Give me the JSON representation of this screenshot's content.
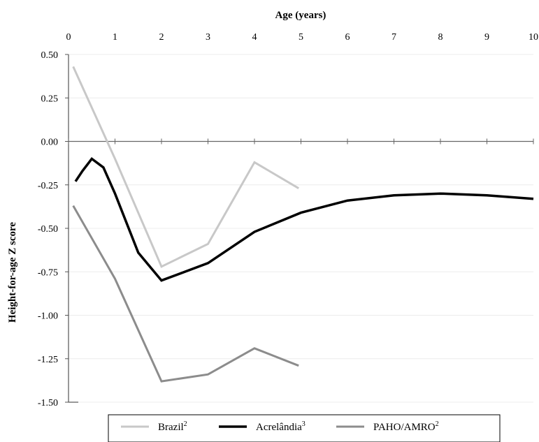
{
  "chart_data": {
    "type": "line",
    "title": "",
    "xlabel": "Age (years)",
    "ylabel": "Height-for-age Z score",
    "x_axis_position": "top",
    "xlim": [
      0,
      10
    ],
    "ylim": [
      -1.5,
      0.5
    ],
    "x_ticks": [
      0,
      1,
      2,
      3,
      4,
      5,
      6,
      7,
      8,
      9,
      10
    ],
    "y_ticks": [
      0.5,
      0.25,
      0.0,
      -0.25,
      -0.5,
      -0.75,
      -1.0,
      -1.25,
      -1.5
    ],
    "y_tick_labels": [
      "0.50",
      "0.25",
      "0.00",
      "-0.25",
      "-0.50",
      "-0.75",
      "-1.00",
      "-1.25",
      "-1.50"
    ],
    "grid": true,
    "legend_position": "bottom",
    "series": [
      {
        "name": "Brazil",
        "name_superscript": "2",
        "color": "#c8c8c8",
        "width": 3,
        "x": [
          0.1,
          1.0,
          2.0,
          3.0,
          4.0,
          4.95
        ],
        "y": [
          0.43,
          -0.1,
          -0.72,
          -0.59,
          -0.12,
          -0.27
        ]
      },
      {
        "name": "Acrelândia",
        "name_superscript": "3",
        "color": "#000000",
        "width": 3.5,
        "x": [
          0.15,
          0.3,
          0.5,
          0.75,
          1.0,
          1.5,
          2.0,
          3.0,
          4.0,
          5.0,
          6.0,
          7.0,
          8.0,
          9.0,
          10.0
        ],
        "y": [
          -0.23,
          -0.17,
          -0.1,
          -0.15,
          -0.3,
          -0.64,
          -0.8,
          -0.7,
          -0.52,
          -0.41,
          -0.34,
          -0.31,
          -0.3,
          -0.31,
          -0.33
        ]
      },
      {
        "name": "PAHO/AMRO",
        "name_superscript": "2",
        "color": "#8c8c8c",
        "width": 3,
        "x": [
          0.1,
          1.0,
          2.0,
          3.0,
          4.0,
          4.95
        ],
        "y": [
          -0.37,
          -0.79,
          -1.38,
          -1.34,
          -1.19,
          -1.29
        ]
      }
    ]
  }
}
